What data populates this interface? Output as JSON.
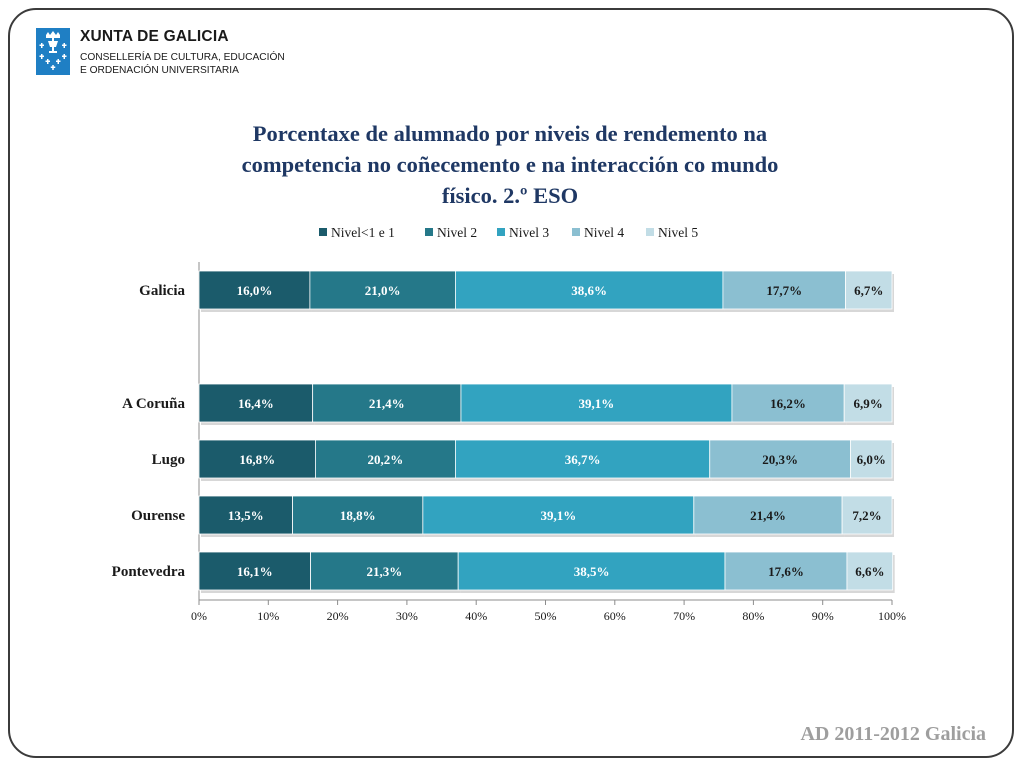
{
  "header": {
    "org_title": "XUNTA DE GALICIA",
    "dept_line1": "CONSELLERÍA DE CULTURA, EDUCACIÓN",
    "dept_line2": "E ORDENACIÓN UNIVERSITARIA",
    "emblem_icon": "galicia-coat-of-arms-icon",
    "emblem_color": "#1f7fc4"
  },
  "footer": {
    "text": "AD 2011-2012 Galicia"
  },
  "chart_data": {
    "type": "bar",
    "orientation": "horizontal",
    "stacked": "percent",
    "title_lines": [
      "Porcentaxe de alumnado por niveis de rendemento na",
      "competencia no coñecemento e na interacción co mundo",
      "físico. 2.º ESO"
    ],
    "categories": [
      "Galicia",
      "",
      "A Coruña",
      "Lugo",
      "Ourense",
      "Pontevedra"
    ],
    "series": [
      {
        "name": "Nivel<1 e 1",
        "color": "#1b5b6b",
        "values": [
          16.0,
          null,
          16.4,
          16.8,
          13.5,
          16.1
        ],
        "labels": [
          "16,0%",
          "",
          "16,4%",
          "16,8%",
          "13,5%",
          "16,1%"
        ]
      },
      {
        "name": "Nivel 2",
        "color": "#257889",
        "values": [
          21.0,
          null,
          21.4,
          20.2,
          18.8,
          21.3
        ],
        "labels": [
          "21,0%",
          "",
          "21,4%",
          "20,2%",
          "18,8%",
          "21,3%"
        ]
      },
      {
        "name": "Nivel 3",
        "color": "#32a3c0",
        "values": [
          38.6,
          null,
          39.1,
          36.7,
          39.1,
          38.5
        ],
        "labels": [
          "38,6%",
          "",
          "39,1%",
          "36,7%",
          "39,1%",
          "38,5%"
        ]
      },
      {
        "name": "Nivel 4",
        "color": "#8bbfd1",
        "values": [
          17.7,
          null,
          16.2,
          20.3,
          21.4,
          17.6
        ],
        "labels": [
          "17,7%",
          "",
          "16,2%",
          "20,3%",
          "21,4%",
          "17,6%"
        ]
      },
      {
        "name": "Nivel 5",
        "color": "#c2dde6",
        "values": [
          6.7,
          null,
          6.9,
          6.0,
          7.2,
          6.6
        ],
        "labels": [
          "6,7%",
          "",
          "6,9%",
          "6,0%",
          "7,2%",
          "6,6%"
        ]
      }
    ],
    "xlim": [
      0,
      100
    ],
    "x_ticks": [
      "0%",
      "10%",
      "20%",
      "30%",
      "40%",
      "50%",
      "60%",
      "70%",
      "80%",
      "90%",
      "100%"
    ],
    "legend_position": "top",
    "grid": false
  }
}
